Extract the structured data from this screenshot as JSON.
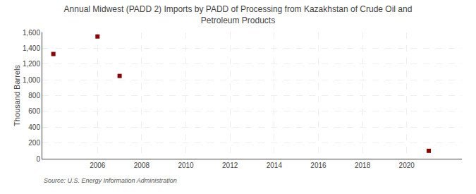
{
  "chart_data": {
    "type": "scatter",
    "title": "Annual Midwest (PADD 2) Imports by PADD of Processing from Kazakhstan of Crude Oil and\nPetroleum Products",
    "ylabel": "Thousand Barrels",
    "source": "Source: U.S. Energy Information Administration",
    "x": [
      2004,
      2006,
      2007,
      2021
    ],
    "values": [
      1327,
      1549,
      1049,
      100
    ],
    "color": "#8b0000",
    "marker": "square",
    "xlim": [
      2003.5,
      2022.5
    ],
    "xticks": [
      2006,
      2008,
      2010,
      2012,
      2014,
      2016,
      2018,
      2020
    ],
    "ylim": [
      0,
      1600
    ],
    "yticks": [
      0,
      200,
      400,
      600,
      800,
      {
        "value": 1000,
        "label": "1,000"
      },
      {
        "value": 1200,
        "label": "1,200"
      },
      {
        "value": 1400,
        "label": "1,400"
      },
      {
        "value": 1600,
        "label": "1,600"
      }
    ],
    "grid": true
  }
}
